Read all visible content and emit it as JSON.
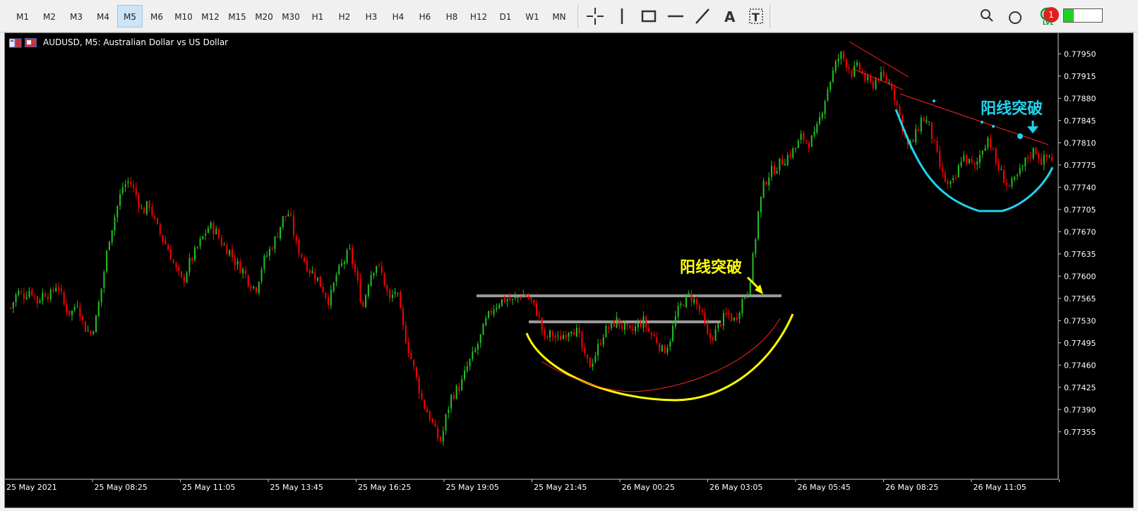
{
  "toolbar": {
    "timeframes": [
      "M1",
      "M2",
      "M3",
      "M4",
      "M5",
      "M6",
      "M10",
      "M12",
      "M15",
      "M20",
      "M30",
      "H1",
      "H2",
      "H3",
      "H4",
      "H6",
      "H8",
      "H12",
      "D1",
      "W1",
      "MN"
    ],
    "active_timeframe": "M5",
    "notification_count": "1",
    "lvl_label": "LVL",
    "tools": [
      "crosshair-icon",
      "vertical-line-icon",
      "rectangle-icon",
      "horizontal-line-icon",
      "trendline-icon",
      "text-icon",
      "text-label-icon"
    ]
  },
  "chart": {
    "title": "AUDUSD, M5:  Australian Dollar vs US Dollar",
    "annotation_left": "阳线突破",
    "annotation_right": "阳线突破",
    "colors": {
      "background": "#000000",
      "bull": "#22c322",
      "bear": "#ff0000",
      "axis_text": "#ffffff",
      "yellow": "#ffff00",
      "cyan": "#22d3ee",
      "level": "#9a9a9a"
    }
  },
  "chart_data": {
    "type": "candlestick",
    "symbol": "AUDUSD",
    "timeframe": "M5",
    "price_labels": [
      "0.77950",
      "0.77915",
      "0.77880",
      "0.77845",
      "0.77810",
      "0.77775",
      "0.77740",
      "0.77705",
      "0.77670",
      "0.77635",
      "0.77600",
      "0.77565",
      "0.77530",
      "0.77495",
      "0.77460",
      "0.77425",
      "0.77390",
      "0.77355"
    ],
    "time_labels": [
      "25 May 2021",
      "25 May 08:25",
      "25 May 11:05",
      "25 May 13:45",
      "25 May 16:25",
      "25 May 19:05",
      "25 May 21:45",
      "26 May 00:25",
      "26 May 03:05",
      "26 May 05:45",
      "26 May 08:25",
      "26 May 11:05"
    ],
    "price_range": [
      0.77325,
      0.7798
    ],
    "horizontal_levels": [
      0.77569,
      0.77528
    ],
    "close_path": [
      [
        0,
        0.7755
      ],
      [
        8,
        0.77575
      ],
      [
        16,
        0.7757
      ],
      [
        24,
        0.7758
      ],
      [
        32,
        0.7756
      ],
      [
        40,
        0.77575
      ],
      [
        48,
        0.7757
      ],
      [
        56,
        0.7759
      ],
      [
        64,
        0.77555
      ],
      [
        72,
        0.7754
      ],
      [
        80,
        0.7756
      ],
      [
        88,
        0.7752
      ],
      [
        96,
        0.7751
      ],
      [
        102,
        0.7753
      ],
      [
        110,
        0.7759
      ],
      [
        118,
        0.7766
      ],
      [
        126,
        0.777
      ],
      [
        134,
        0.7774
      ],
      [
        142,
        0.7775
      ],
      [
        150,
        0.7773
      ],
      [
        158,
        0.777
      ],
      [
        166,
        0.77715
      ],
      [
        174,
        0.7768
      ],
      [
        182,
        0.7766
      ],
      [
        190,
        0.7764
      ],
      [
        198,
        0.7761
      ],
      [
        206,
        0.7759
      ],
      [
        214,
        0.7762
      ],
      [
        222,
        0.7764
      ],
      [
        230,
        0.7766
      ],
      [
        238,
        0.7768
      ],
      [
        246,
        0.7767
      ],
      [
        254,
        0.7765
      ],
      [
        262,
        0.7764
      ],
      [
        270,
        0.7762
      ],
      [
        278,
        0.7761
      ],
      [
        286,
        0.7759
      ],
      [
        294,
        0.7758
      ],
      [
        302,
        0.7762
      ],
      [
        310,
        0.7764
      ],
      [
        318,
        0.7766
      ],
      [
        326,
        0.7769
      ],
      [
        334,
        0.777
      ],
      [
        342,
        0.7765
      ],
      [
        350,
        0.7763
      ],
      [
        358,
        0.7761
      ],
      [
        366,
        0.776
      ],
      [
        374,
        0.7758
      ],
      [
        382,
        0.7756
      ],
      [
        390,
        0.776
      ],
      [
        398,
        0.7762
      ],
      [
        406,
        0.7764
      ],
      [
        414,
        0.776
      ],
      [
        422,
        0.7755
      ],
      [
        430,
        0.776
      ],
      [
        438,
        0.7762
      ],
      [
        446,
        0.776
      ],
      [
        454,
        0.7756
      ],
      [
        462,
        0.7758
      ],
      [
        470,
        0.7752
      ],
      [
        478,
        0.7748
      ],
      [
        486,
        0.7744
      ],
      [
        494,
        0.774
      ],
      [
        502,
        0.7738
      ],
      [
        510,
        0.7735
      ],
      [
        516,
        0.7734
      ],
      [
        522,
        0.7738
      ],
      [
        528,
        0.7741
      ],
      [
        534,
        0.7742
      ],
      [
        540,
        0.7743
      ],
      [
        548,
        0.7746
      ],
      [
        556,
        0.7748
      ],
      [
        562,
        0.775
      ],
      [
        570,
        0.7753
      ],
      [
        578,
        0.7755
      ],
      [
        586,
        0.7756
      ],
      [
        594,
        0.77565
      ],
      [
        602,
        0.7756
      ],
      [
        610,
        0.7757
      ],
      [
        618,
        0.7757
      ],
      [
        624,
        0.7756
      ],
      [
        632,
        0.7754
      ],
      [
        640,
        0.775
      ],
      [
        648,
        0.7751
      ],
      [
        656,
        0.775
      ],
      [
        664,
        0.7751
      ],
      [
        672,
        0.7752
      ],
      [
        680,
        0.7751
      ],
      [
        688,
        0.7747
      ],
      [
        694,
        0.7746
      ],
      [
        702,
        0.7748
      ],
      [
        710,
        0.7751
      ],
      [
        718,
        0.7752
      ],
      [
        726,
        0.7753
      ],
      [
        734,
        0.7752
      ],
      [
        742,
        0.7751
      ],
      [
        750,
        0.7752
      ],
      [
        758,
        0.7753
      ],
      [
        766,
        0.7751
      ],
      [
        774,
        0.775
      ],
      [
        782,
        0.7748
      ],
      [
        790,
        0.775
      ],
      [
        798,
        0.7754
      ],
      [
        806,
        0.7756
      ],
      [
        814,
        0.7757
      ],
      [
        820,
        0.7756
      ],
      [
        828,
        0.7754
      ],
      [
        836,
        0.775
      ],
      [
        844,
        0.7751
      ],
      [
        852,
        0.7753
      ],
      [
        860,
        0.7754
      ],
      [
        868,
        0.7753
      ],
      [
        876,
        0.7756
      ],
      [
        884,
        0.7758
      ],
      [
        890,
        0.7763
      ],
      [
        896,
        0.777
      ],
      [
        902,
        0.7774
      ],
      [
        908,
        0.7776
      ],
      [
        916,
        0.7777
      ],
      [
        924,
        0.7778
      ],
      [
        932,
        0.7779
      ],
      [
        940,
        0.778
      ],
      [
        948,
        0.7782
      ],
      [
        956,
        0.7781
      ],
      [
        964,
        0.7782
      ],
      [
        972,
        0.7786
      ],
      [
        980,
        0.779
      ],
      [
        988,
        0.7793
      ],
      [
        994,
        0.7795
      ],
      [
        1000,
        0.7794
      ],
      [
        1008,
        0.7792
      ],
      [
        1016,
        0.7793
      ],
      [
        1024,
        0.7791
      ],
      [
        1032,
        0.779
      ],
      [
        1040,
        0.77915
      ],
      [
        1048,
        0.7791
      ],
      [
        1056,
        0.779
      ],
      [
        1062,
        0.7787
      ],
      [
        1068,
        0.7784
      ],
      [
        1076,
        0.778
      ],
      [
        1084,
        0.7782
      ],
      [
        1092,
        0.7785
      ],
      [
        1100,
        0.7784
      ],
      [
        1108,
        0.778
      ],
      [
        1116,
        0.7776
      ],
      [
        1124,
        0.7774
      ],
      [
        1132,
        0.7775
      ],
      [
        1140,
        0.7779
      ],
      [
        1148,
        0.7778
      ],
      [
        1156,
        0.7777
      ],
      [
        1164,
        0.778
      ],
      [
        1172,
        0.7782
      ],
      [
        1180,
        0.7778
      ],
      [
        1188,
        0.7776
      ],
      [
        1196,
        0.7774
      ],
      [
        1204,
        0.7775
      ],
      [
        1212,
        0.7777
      ],
      [
        1220,
        0.7779
      ],
      [
        1228,
        0.778
      ],
      [
        1236,
        0.7778
      ],
      [
        1244,
        0.7779
      ],
      [
        1252,
        0.7778
      ],
      [
        1260,
        0.7781
      ]
    ]
  }
}
